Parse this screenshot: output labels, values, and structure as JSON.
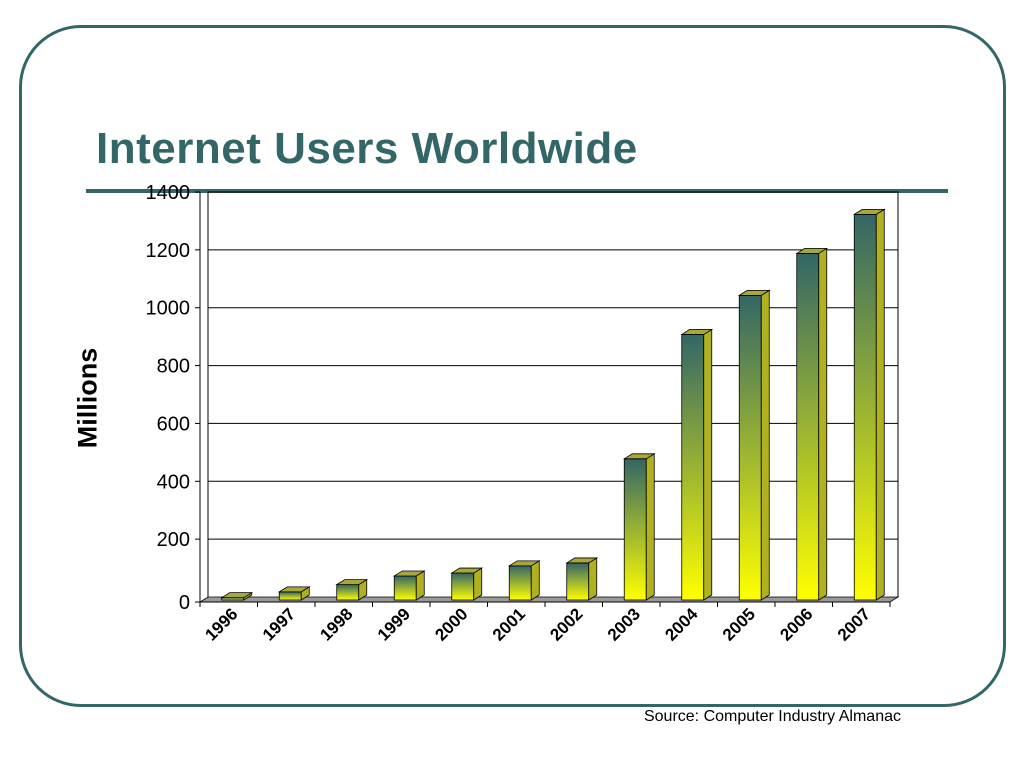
{
  "slide": {
    "title": "Internet Users Worldwide",
    "source": "Source: Computer Industry Almanac",
    "colors": {
      "accent": "#336666",
      "bar_top": "#336666",
      "bar_bottom": "#ffff00"
    }
  },
  "chart_data": {
    "type": "bar",
    "style": "3d-column-gradient",
    "title": "",
    "xlabel": "",
    "ylabel": "Millions",
    "categories": [
      "1996",
      "1997",
      "1998",
      "1999",
      "2000",
      "2001",
      "2002",
      "2003",
      "2004",
      "2005",
      "2006",
      "2007"
    ],
    "series": [
      {
        "values": [
          15,
          35,
          60,
          90,
          100,
          125,
          135,
          495,
          925,
          1060,
          1205,
          1340
        ]
      }
    ],
    "ylim": [
      0,
      1400
    ],
    "yticks": [
      0,
      200,
      400,
      600,
      800,
      1000,
      1200,
      1400
    ],
    "grid": true,
    "legend": "none"
  }
}
